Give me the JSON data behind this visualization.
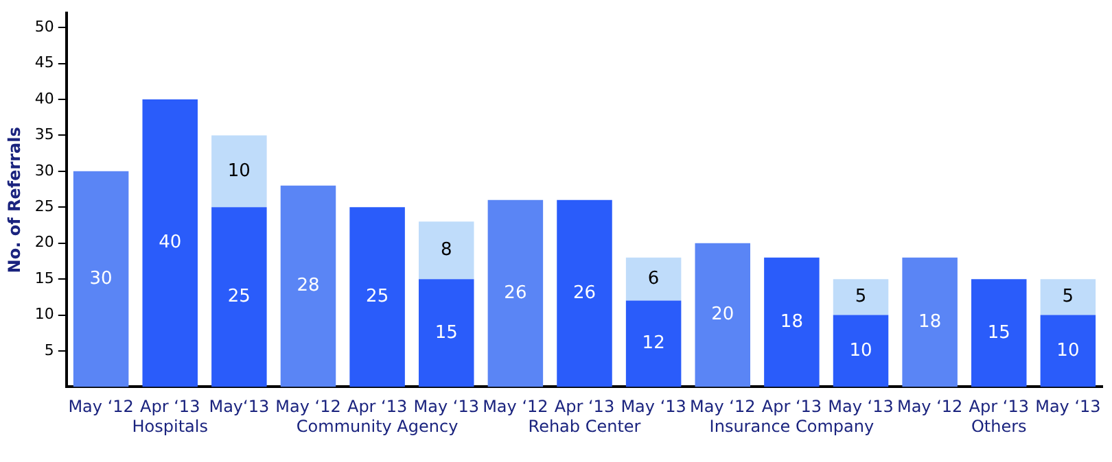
{
  "chart_data": {
    "type": "bar",
    "ylabel": "No. of Referrals",
    "categories": [
      "May ‘12",
      "Apr ‘13\nHospitals",
      "May‘13",
      "May ‘12",
      "Apr ‘13\nCommunity Agency",
      "May ‘13",
      "May ‘12",
      "Apr ‘13\nRehab Center",
      "May ‘13",
      "May ‘12",
      "Apr ‘13\nInsurance Company",
      "May ‘13",
      "May ‘12",
      "Apr ‘13\nOthers",
      "May ‘13"
    ],
    "series": [
      {
        "colors": [
          "#5a85f5",
          "#2a5cfa",
          "#2a5cfa",
          "#5a85f5",
          "#2a5cfa",
          "#2a5cfa",
          "#5a85f5",
          "#2a5cfa",
          "#2a5cfa",
          "#5a85f5",
          "#2a5cfa",
          "#2a5cfa",
          "#5a85f5",
          "#2a5cfa",
          "#2a5cfa"
        ],
        "values": [
          30,
          40,
          25,
          28,
          25,
          15,
          26,
          26,
          12,
          20,
          18,
          10,
          18,
          15,
          10
        ]
      },
      {
        "color": "#bfdcfa",
        "values": [
          null,
          null,
          10,
          null,
          null,
          8,
          null,
          null,
          6,
          null,
          null,
          5,
          null,
          null,
          5
        ]
      }
    ],
    "stacked": true,
    "data_labels": true,
    "ylim": [
      0,
      52
    ],
    "yticks": [
      5,
      10,
      15,
      20,
      25,
      30,
      35,
      40,
      45,
      50
    ],
    "grid": false,
    "legend": false
  }
}
